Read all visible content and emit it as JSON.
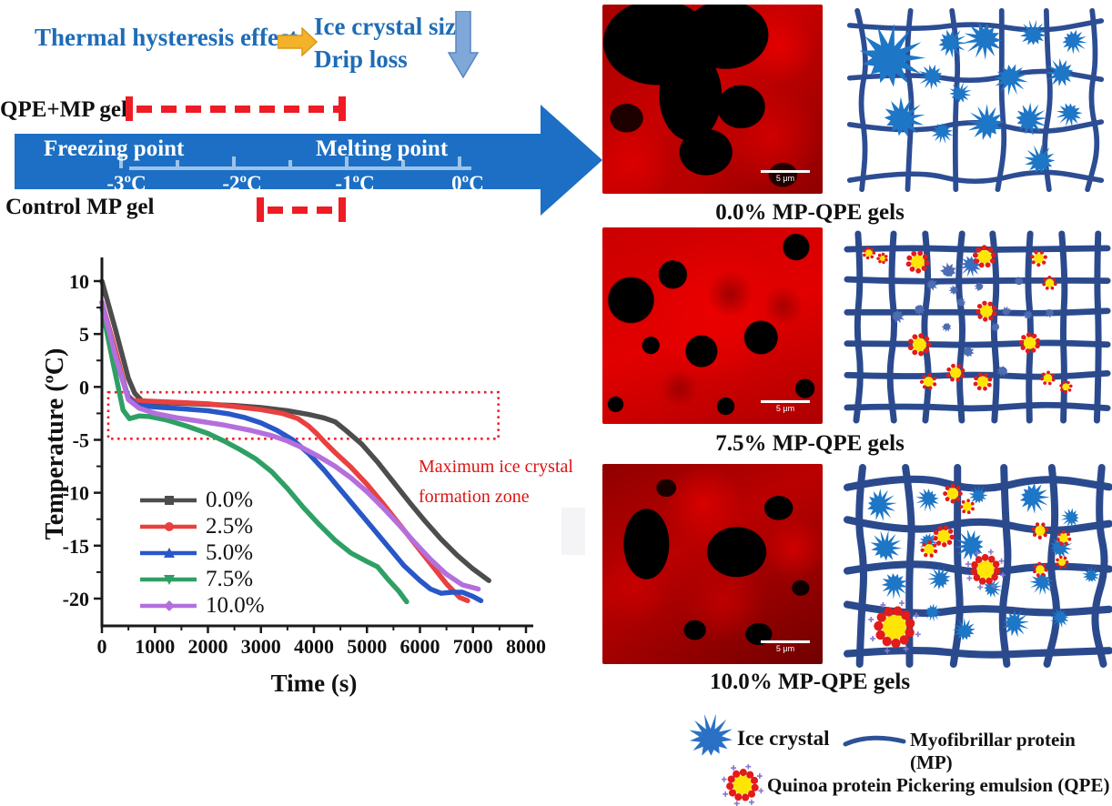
{
  "header": {
    "title": "Thermal hysteresis effect",
    "effect_line1": "Ice crystal size",
    "effect_line2": "Drip loss",
    "accent_blue": "#1e6cb7",
    "arrow_yellow": "#f3b229",
    "arrow_down_blue": "#7fa8d9"
  },
  "timeline": {
    "qpe_label": "QPE+MP gel",
    "control_label": "Control MP gel",
    "freezing_label": "Freezing point",
    "melting_label": "Melting point",
    "ticks": [
      "-3ºC",
      "-2ºC",
      "-1ºC",
      "0ºC"
    ],
    "arrow_color": "#1c6fc4",
    "bracket_color": "#ee1c25",
    "qpe_range_c": [
      -2.9,
      -1.0
    ],
    "control_range_c": [
      -1.8,
      -1.0
    ]
  },
  "chart_data": {
    "type": "line",
    "xlabel": "Time (s)",
    "ylabel": "Temperature (ºC)",
    "xlim": [
      0,
      8000
    ],
    "ylim": [
      -22.5,
      12.5
    ],
    "xticks": [
      0,
      1000,
      2000,
      3000,
      4000,
      5000,
      6000,
      7000,
      8000
    ],
    "yticks": [
      10,
      5,
      0,
      -5,
      -10,
      -15,
      -20
    ],
    "grid": false,
    "legend_position": "inside-left",
    "zone": {
      "t0": 120,
      "t1": 7480,
      "T_top": -0.5,
      "T_bottom": -4.9
    },
    "annotation": {
      "line1": "Maximum ice crystal",
      "line2": "formation zone",
      "color": "#e01212"
    },
    "series": [
      {
        "name": "0.0%",
        "color": "#4d4d4d",
        "marker": "square",
        "points": [
          [
            0,
            10
          ],
          [
            250,
            5.5
          ],
          [
            500,
            0.8
          ],
          [
            620,
            -0.6
          ],
          [
            750,
            -1.3
          ],
          [
            1000,
            -1.45
          ],
          [
            1500,
            -1.55
          ],
          [
            2000,
            -1.65
          ],
          [
            2500,
            -1.75
          ],
          [
            3000,
            -1.95
          ],
          [
            3500,
            -2.25
          ],
          [
            3900,
            -2.6
          ],
          [
            4200,
            -2.95
          ],
          [
            4400,
            -3.3
          ],
          [
            4600,
            -4.1
          ],
          [
            4900,
            -5.4
          ],
          [
            5200,
            -7.1
          ],
          [
            5500,
            -9.0
          ],
          [
            5800,
            -10.9
          ],
          [
            6100,
            -12.7
          ],
          [
            6400,
            -14.4
          ],
          [
            6700,
            -15.9
          ],
          [
            7000,
            -17.2
          ],
          [
            7300,
            -18.3
          ]
        ]
      },
      {
        "name": "2.5%",
        "color": "#e8413f",
        "marker": "circle",
        "points": [
          [
            0,
            8
          ],
          [
            250,
            3.5
          ],
          [
            480,
            -0.8
          ],
          [
            600,
            -1.3
          ],
          [
            900,
            -1.35
          ],
          [
            1400,
            -1.45
          ],
          [
            2000,
            -1.6
          ],
          [
            2500,
            -1.85
          ],
          [
            3000,
            -2.15
          ],
          [
            3400,
            -2.5
          ],
          [
            3700,
            -3.0
          ],
          [
            3900,
            -3.7
          ],
          [
            4050,
            -4.4
          ],
          [
            4200,
            -5.2
          ],
          [
            4400,
            -6.2
          ],
          [
            4700,
            -7.6
          ],
          [
            5000,
            -9.2
          ],
          [
            5300,
            -11.0
          ],
          [
            5600,
            -12.9
          ],
          [
            5900,
            -14.8
          ],
          [
            6200,
            -16.7
          ],
          [
            6500,
            -18.6
          ],
          [
            6750,
            -19.9
          ],
          [
            6900,
            -20.2
          ]
        ]
      },
      {
        "name": "5.0%",
        "color": "#2857c8",
        "marker": "triangle",
        "points": [
          [
            0,
            7.5
          ],
          [
            250,
            2.8
          ],
          [
            500,
            -1.0
          ],
          [
            650,
            -1.7
          ],
          [
            1000,
            -1.9
          ],
          [
            1500,
            -2.05
          ],
          [
            2000,
            -2.25
          ],
          [
            2400,
            -2.55
          ],
          [
            2700,
            -2.9
          ],
          [
            3000,
            -3.4
          ],
          [
            3300,
            -4.1
          ],
          [
            3600,
            -5.0
          ],
          [
            3900,
            -6.3
          ],
          [
            4200,
            -7.9
          ],
          [
            4500,
            -9.7
          ],
          [
            4800,
            -11.5
          ],
          [
            5100,
            -13.3
          ],
          [
            5400,
            -15.1
          ],
          [
            5700,
            -16.9
          ],
          [
            6000,
            -18.3
          ],
          [
            6200,
            -19.1
          ],
          [
            6400,
            -19.5
          ],
          [
            6600,
            -19.4
          ],
          [
            6800,
            -19.4
          ],
          [
            7000,
            -19.8
          ],
          [
            7150,
            -20.2
          ]
        ]
      },
      {
        "name": "7.5%",
        "color": "#2fa065",
        "marker": "triangle-down",
        "points": [
          [
            0,
            7.5
          ],
          [
            200,
            2.5
          ],
          [
            400,
            -2.2
          ],
          [
            520,
            -3.0
          ],
          [
            700,
            -2.75
          ],
          [
            900,
            -2.8
          ],
          [
            1200,
            -3.1
          ],
          [
            1600,
            -3.7
          ],
          [
            2000,
            -4.4
          ],
          [
            2300,
            -5.1
          ],
          [
            2600,
            -5.9
          ],
          [
            2900,
            -6.8
          ],
          [
            3200,
            -8.0
          ],
          [
            3500,
            -9.6
          ],
          [
            3800,
            -11.4
          ],
          [
            4100,
            -13.0
          ],
          [
            4400,
            -14.5
          ],
          [
            4700,
            -15.7
          ],
          [
            5000,
            -16.5
          ],
          [
            5200,
            -17.0
          ],
          [
            5400,
            -18.2
          ],
          [
            5600,
            -19.3
          ],
          [
            5750,
            -20.3
          ]
        ]
      },
      {
        "name": "10.0%",
        "color": "#b46fdd",
        "marker": "diamond",
        "points": [
          [
            0,
            8
          ],
          [
            250,
            3
          ],
          [
            500,
            -1.2
          ],
          [
            700,
            -2.0
          ],
          [
            1000,
            -2.5
          ],
          [
            1400,
            -2.9
          ],
          [
            1800,
            -3.2
          ],
          [
            2300,
            -3.6
          ],
          [
            2800,
            -4.1
          ],
          [
            3200,
            -4.6
          ],
          [
            3500,
            -5.1
          ],
          [
            3800,
            -5.8
          ],
          [
            4100,
            -6.6
          ],
          [
            4400,
            -7.5
          ],
          [
            4700,
            -8.6
          ],
          [
            5000,
            -9.9
          ],
          [
            5300,
            -11.4
          ],
          [
            5600,
            -13.0
          ],
          [
            5900,
            -14.7
          ],
          [
            6200,
            -16.3
          ],
          [
            6500,
            -17.7
          ],
          [
            6800,
            -18.7
          ],
          [
            7100,
            -19.1
          ]
        ]
      }
    ]
  },
  "micro": {
    "scale_label": "5 μm"
  },
  "panels": [
    {
      "label": "0.0% MP-QPE gels",
      "schematic": {
        "net_color": "#2c4d93",
        "star_color": "#1e76c6",
        "blob_color": "#4e6cb2",
        "grid": {
          "h": 4,
          "v": 6,
          "sw": 6,
          "wobble": 11
        },
        "stars": [
          [
            52,
            60,
            35
          ],
          [
            122,
            42,
            16
          ],
          [
            160,
            38,
            21
          ],
          [
            216,
            32,
            15
          ],
          [
            262,
            40,
            14
          ],
          [
            100,
            82,
            14
          ],
          [
            132,
            102,
            12
          ],
          [
            190,
            84,
            18
          ],
          [
            248,
            78,
            16
          ],
          [
            66,
            132,
            23
          ],
          [
            112,
            148,
            12
          ],
          [
            163,
            138,
            20
          ],
          [
            212,
            133,
            18
          ],
          [
            258,
            126,
            14
          ],
          [
            224,
            182,
            17
          ]
        ],
        "blobs": [],
        "qpe": []
      }
    },
    {
      "label": "7.5% MP-QPE gels",
      "schematic": {
        "net_color": "#2b4a8e",
        "star_color": "#3a6cc0",
        "blob_color": "#4e6cb2",
        "grid": {
          "h": 6,
          "v": 8,
          "sw": 7,
          "wobble": 4
        },
        "stars": [
          [
            143,
            40,
            12
          ]
        ],
        "blobs": [
          [
            118,
            46,
            8
          ],
          [
            100,
            62,
            6
          ],
          [
            124,
            68,
            5
          ],
          [
            132,
            82,
            5
          ],
          [
            86,
            90,
            6
          ],
          [
            152,
            64,
            5
          ],
          [
            182,
            92,
            5
          ],
          [
            116,
            110,
            5
          ],
          [
            170,
            110,
            5
          ],
          [
            140,
            138,
            6
          ],
          [
            178,
            160,
            6
          ],
          [
            206,
            96,
            5
          ],
          [
            62,
            98,
            7
          ],
          [
            230,
            94,
            5
          ],
          [
            196,
            58,
            5
          ]
        ],
        "qpe": [
          [
            30,
            26,
            6
          ],
          [
            45,
            32,
            5
          ],
          [
            84,
            36,
            11
          ],
          [
            158,
            30,
            11
          ],
          [
            218,
            32,
            8
          ],
          [
            230,
            60,
            7
          ],
          [
            160,
            92,
            10
          ],
          [
            86,
            130,
            11
          ],
          [
            208,
            128,
            10
          ],
          [
            126,
            162,
            9
          ],
          [
            96,
            172,
            8
          ],
          [
            156,
            172,
            9
          ],
          [
            228,
            168,
            7
          ],
          [
            248,
            178,
            6
          ]
        ]
      }
    },
    {
      "label": "10.0% MP-QPE gels",
      "schematic": {
        "net_color": "#2b4a8e",
        "star_color": "#1e76c6",
        "blob_color": "#4e6cb2",
        "grid": {
          "h": 5,
          "v": 6,
          "sw": 8,
          "wobble": 11
        },
        "stars": [
          [
            42,
            44,
            16
          ],
          [
            95,
            38,
            12
          ],
          [
            150,
            34,
            10
          ],
          [
            210,
            36,
            16
          ],
          [
            252,
            58,
            10
          ],
          [
            48,
            90,
            16
          ],
          [
            95,
            84,
            10
          ],
          [
            142,
            88,
            16
          ],
          [
            240,
            90,
            12
          ],
          [
            58,
            130,
            14
          ],
          [
            108,
            124,
            12
          ],
          [
            165,
            134,
            10
          ],
          [
            220,
            128,
            12
          ],
          [
            135,
            180,
            12
          ],
          [
            190,
            172,
            14
          ],
          [
            240,
            166,
            10
          ],
          [
            274,
            120,
            9
          ],
          [
            100,
            160,
            9
          ]
        ],
        "blobs": [],
        "qpe": [
          [
            122,
            32,
            9
          ],
          [
            138,
            46,
            7
          ],
          [
            112,
            78,
            10
          ],
          [
            96,
            92,
            8
          ],
          [
            218,
            72,
            8
          ],
          [
            244,
            80,
            7
          ],
          [
            158,
            114,
            14
          ],
          [
            218,
            114,
            7
          ],
          [
            58,
            176,
            19
          ],
          [
            242,
            106,
            6
          ]
        ]
      }
    }
  ],
  "bottom_legend": {
    "ice_crystal": "Ice crystal",
    "mp": "Myofibrillar protein (MP)",
    "qpe": "Quinoa protein Pickering emulsion (QPE)"
  }
}
